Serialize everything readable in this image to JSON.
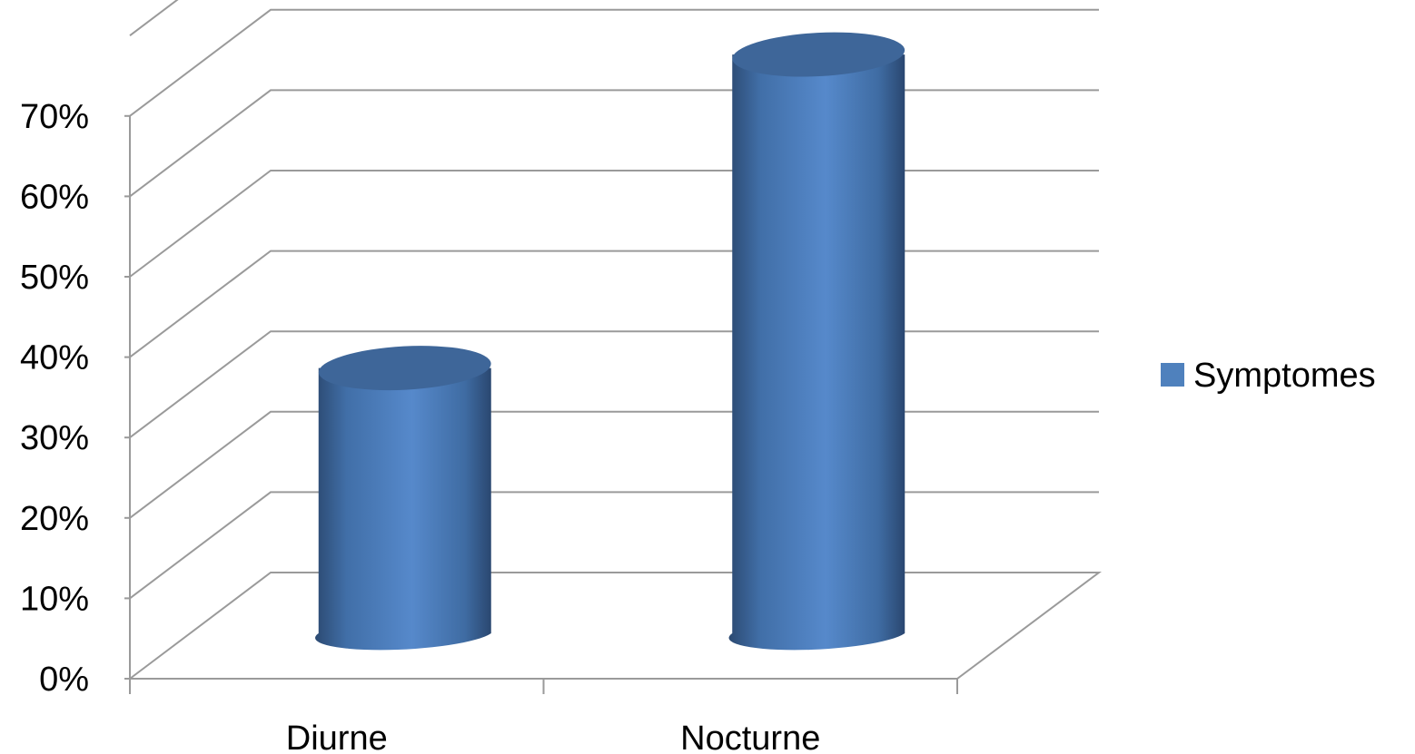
{
  "chart_data": {
    "type": "bar",
    "style": "3d-cylinder",
    "categories": [
      "Diurne",
      "Nocturne"
    ],
    "series": [
      {
        "name": "Symptomes",
        "values": [
          33,
          72
        ],
        "color": "#4F81BD"
      }
    ],
    "ylim": [
      0,
      80
    ],
    "yticks": [
      "0%",
      "10%",
      "20%",
      "30%",
      "40%",
      "50%",
      "60%",
      "70%"
    ],
    "grid": true,
    "legend": "right",
    "title": "",
    "xlabel": "",
    "ylabel": ""
  }
}
